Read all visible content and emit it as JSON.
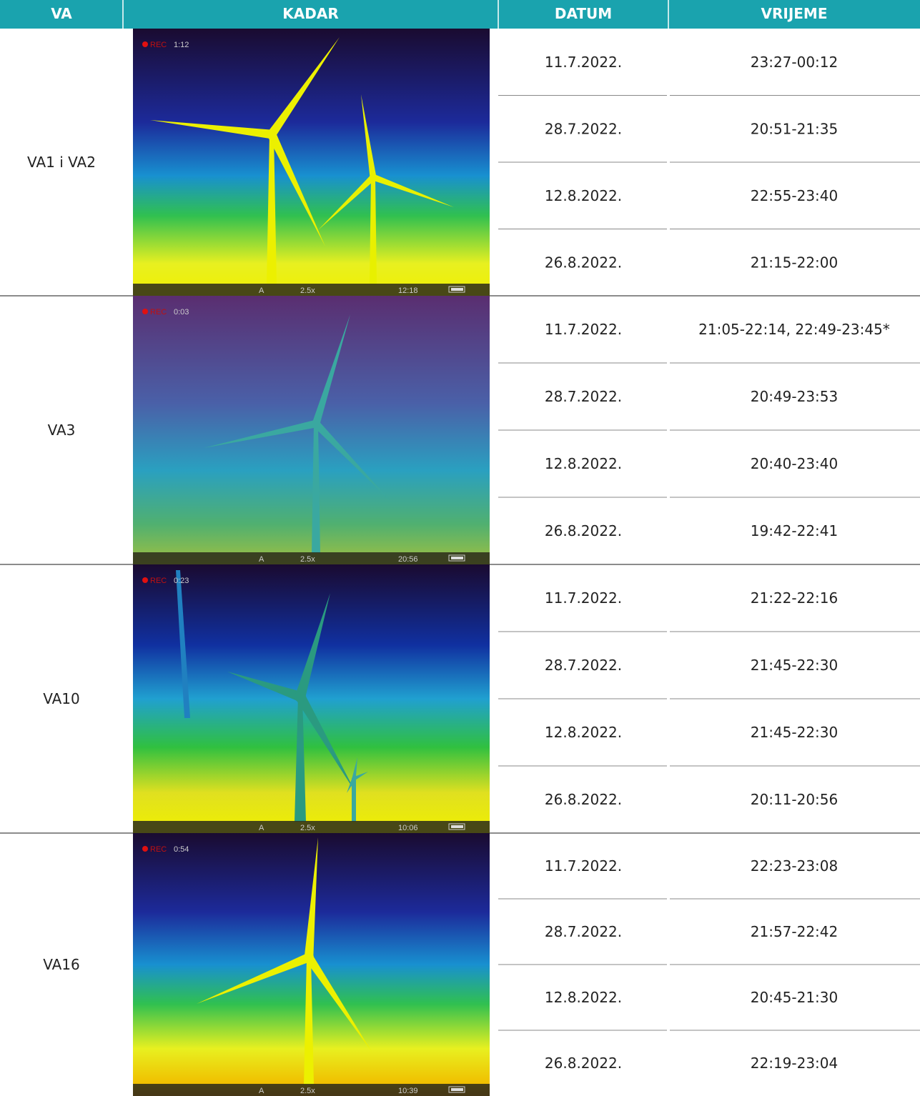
{
  "header": [
    "VA",
    "KADAR",
    "DATUM",
    "VRIJEME"
  ],
  "groups": [
    {
      "va": "VA1 i VA2",
      "frame": {
        "rec_label": "REC",
        "rec_time": "1:12",
        "mode": "A",
        "zoom": "2.5x",
        "clock": "12:18"
      },
      "rows": [
        {
          "date": "11.7.2022.",
          "time": "23:27-00:12"
        },
        {
          "date": "28.7.2022.",
          "time": "20:51-21:35"
        },
        {
          "date": "12.8.2022.",
          "time": "22:55-23:40"
        },
        {
          "date": "26.8.2022.",
          "time": "21:15-22:00"
        }
      ]
    },
    {
      "va": "VA3",
      "frame": {
        "rec_label": "REC",
        "rec_time": "0:03",
        "mode": "A",
        "zoom": "2.5x",
        "clock": "20:56"
      },
      "rows": [
        {
          "date": "11.7.2022.",
          "time": "21:05-22:14, 22:49-23:45*"
        },
        {
          "date": "28.7.2022.",
          "time": "20:49-23:53"
        },
        {
          "date": "12.8.2022.",
          "time": "20:40-23:40"
        },
        {
          "date": "26.8.2022.",
          "time": "19:42-22:41"
        }
      ]
    },
    {
      "va": "VA10",
      "frame": {
        "rec_label": "REC",
        "rec_time": "0:23",
        "mode": "A",
        "zoom": "2.5x",
        "clock": "10:06"
      },
      "rows": [
        {
          "date": "11.7.2022.",
          "time": "21:22-22:16"
        },
        {
          "date": "28.7.2022.",
          "time": "21:45-22:30"
        },
        {
          "date": "12.8.2022.",
          "time": "21:45-22:30"
        },
        {
          "date": "26.8.2022.",
          "time": "20:11-20:56"
        }
      ]
    },
    {
      "va": "VA16",
      "frame": {
        "rec_label": "REC",
        "rec_time": "0:54",
        "mode": "A",
        "zoom": "2.5x",
        "clock": "10:39"
      },
      "rows": [
        {
          "date": "11.7.2022.",
          "time": "22:23-23:08"
        },
        {
          "date": "28.7.2022.",
          "time": "21:57-22:42"
        },
        {
          "date": "12.8.2022.",
          "time": "20:45-21:30"
        },
        {
          "date": "26.8.2022.",
          "time": "22:19-23:04"
        }
      ]
    }
  ]
}
